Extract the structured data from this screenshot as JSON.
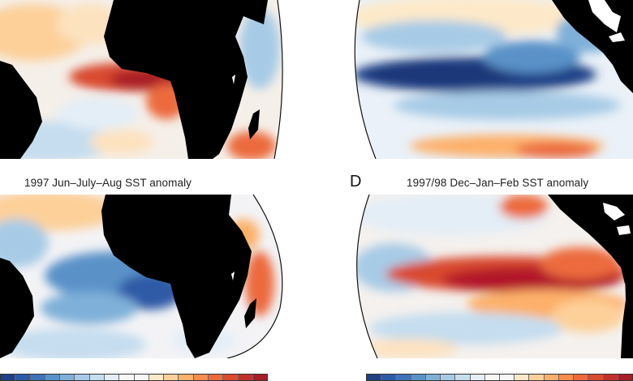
{
  "panels": {
    "top_left": {
      "label": "",
      "caption": ""
    },
    "top_right": {
      "label": "",
      "caption": ""
    },
    "bottom_left": {
      "label": "",
      "caption": "1997 Jun–July–Aug SST anomaly"
    },
    "bottom_right": {
      "label": "D",
      "caption": "1997/98 Dec–Jan–Feb SST anomaly"
    }
  },
  "colors": {
    "land": "#000000",
    "ocean_neutral": "#f6f2ee",
    "warm_strong": "#b2182b",
    "warm_mid": "#e8613a",
    "warm_light": "#fdbf78",
    "cool_light": "#c5ddef",
    "cool_mid": "#5a92c8",
    "cool_strong": "#1f3f86"
  },
  "colorbar_left": [
    "#1f3f86",
    "#2d5aa6",
    "#3f73b9",
    "#5a92c8",
    "#7fb0d9",
    "#a7cbe6",
    "#c5ddef",
    "#e3eef7",
    "#f7f7f7",
    "#f7f7f7",
    "#fde9c9",
    "#fdd09a",
    "#fdb06a",
    "#f88d4f",
    "#ec6a3c",
    "#d94a2f",
    "#c2302a",
    "#a81c25"
  ],
  "colorbar_right": [
    "#1f3f86",
    "#2d5aa6",
    "#3f73b9",
    "#5a92c8",
    "#7fb0d9",
    "#a7cbe6",
    "#c5ddef",
    "#e3eef7",
    "#f7f7f7",
    "#f7f7f7",
    "#fde9c9",
    "#fdd09a",
    "#fdb06a",
    "#f88d4f",
    "#ec6a3c",
    "#d94a2f",
    "#c2302a",
    "#a81c25"
  ]
}
